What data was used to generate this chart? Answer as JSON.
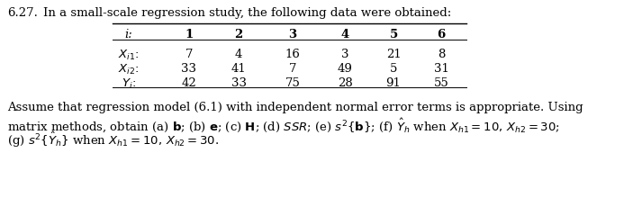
{
  "problem_number": "6.27.",
  "intro_text": "In a small-scale regression study, the following data were obtained:",
  "header": [
    "i:",
    "1",
    "2",
    "3",
    "4",
    "5",
    "6"
  ],
  "rows": [
    [
      "X_{i1}:",
      "7",
      "4",
      "16",
      "3",
      "21",
      "8"
    ],
    [
      "X_{i2}:",
      "33",
      "41",
      "7",
      "49",
      "5",
      "31"
    ],
    [
      "Y_i:",
      "42",
      "33",
      "75",
      "28",
      "91",
      "55"
    ]
  ],
  "footer1": "Assume that regression model (6.1) with independent normal error terms is appropriate. Using",
  "footer2a": "matrix methods, obtain (a) ",
  "footer2b": "b",
  "footer2c": "; (b) ",
  "footer2d": "e",
  "footer2e": "; (c) ",
  "footer2f": "H",
  "footer2g": "; (d) ",
  "footer2h": "SSR",
  "footer2i": "; (e) ",
  "footer2j": "s²{",
  "footer2k": "b",
  "footer2l": "}; (f) ",
  "footer3a": "(g) ",
  "bg_color": "#ffffff",
  "text_color": "#000000"
}
